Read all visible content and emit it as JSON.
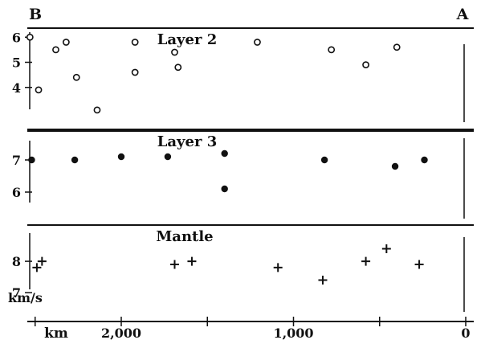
{
  "chart_data": {
    "type": "scatter",
    "profile": {
      "left_end": "B",
      "right_end": "A"
    },
    "xlim": [
      0,
      2550
    ],
    "x_reversed": true,
    "x_ticks": [
      {
        "value": 2000,
        "label": "2,000"
      },
      {
        "value": 1000,
        "label": "1,000"
      },
      {
        "value": 0,
        "label": "0"
      }
    ],
    "x_minor_ticks": [
      2500,
      1500,
      500
    ],
    "xlabel": "km",
    "ylabel": "km/s",
    "panels": [
      {
        "name": "Layer 2",
        "marker": "open-circle",
        "ylim": [
          3.0,
          6.2
        ],
        "y_ticks": [
          4,
          5,
          6
        ],
        "points": [
          {
            "x": 2530,
            "y": 6.0
          },
          {
            "x": 2480,
            "y": 3.9
          },
          {
            "x": 2380,
            "y": 5.5
          },
          {
            "x": 2320,
            "y": 5.8
          },
          {
            "x": 2260,
            "y": 4.4
          },
          {
            "x": 2140,
            "y": 3.1
          },
          {
            "x": 1920,
            "y": 5.8
          },
          {
            "x": 1920,
            "y": 4.6
          },
          {
            "x": 1690,
            "y": 5.4
          },
          {
            "x": 1670,
            "y": 4.8
          },
          {
            "x": 1210,
            "y": 5.8
          },
          {
            "x": 780,
            "y": 5.5
          },
          {
            "x": 580,
            "y": 4.9
          },
          {
            "x": 400,
            "y": 5.6
          }
        ]
      },
      {
        "name": "Layer 3",
        "marker": "filled-circle",
        "ylim": [
          5.6,
          7.6
        ],
        "y_ticks": [
          6,
          7
        ],
        "points": [
          {
            "x": 2520,
            "y": 7.0
          },
          {
            "x": 2270,
            "y": 7.0
          },
          {
            "x": 2000,
            "y": 7.1
          },
          {
            "x": 1730,
            "y": 7.1
          },
          {
            "x": 1400,
            "y": 7.2
          },
          {
            "x": 1400,
            "y": 6.1
          },
          {
            "x": 820,
            "y": 7.0
          },
          {
            "x": 410,
            "y": 6.8
          },
          {
            "x": 240,
            "y": 7.0
          }
        ]
      },
      {
        "name": "Mantle",
        "marker": "plus",
        "ylim": [
          6.9,
          8.9
        ],
        "y_ticks": [
          7,
          8
        ],
        "points": [
          {
            "x": 2490,
            "y": 7.8
          },
          {
            "x": 2460,
            "y": 8.0
          },
          {
            "x": 1690,
            "y": 7.9
          },
          {
            "x": 1590,
            "y": 8.0
          },
          {
            "x": 1090,
            "y": 7.8
          },
          {
            "x": 830,
            "y": 7.4
          },
          {
            "x": 580,
            "y": 8.0
          },
          {
            "x": 460,
            "y": 8.4
          },
          {
            "x": 270,
            "y": 7.9
          }
        ]
      }
    ]
  }
}
